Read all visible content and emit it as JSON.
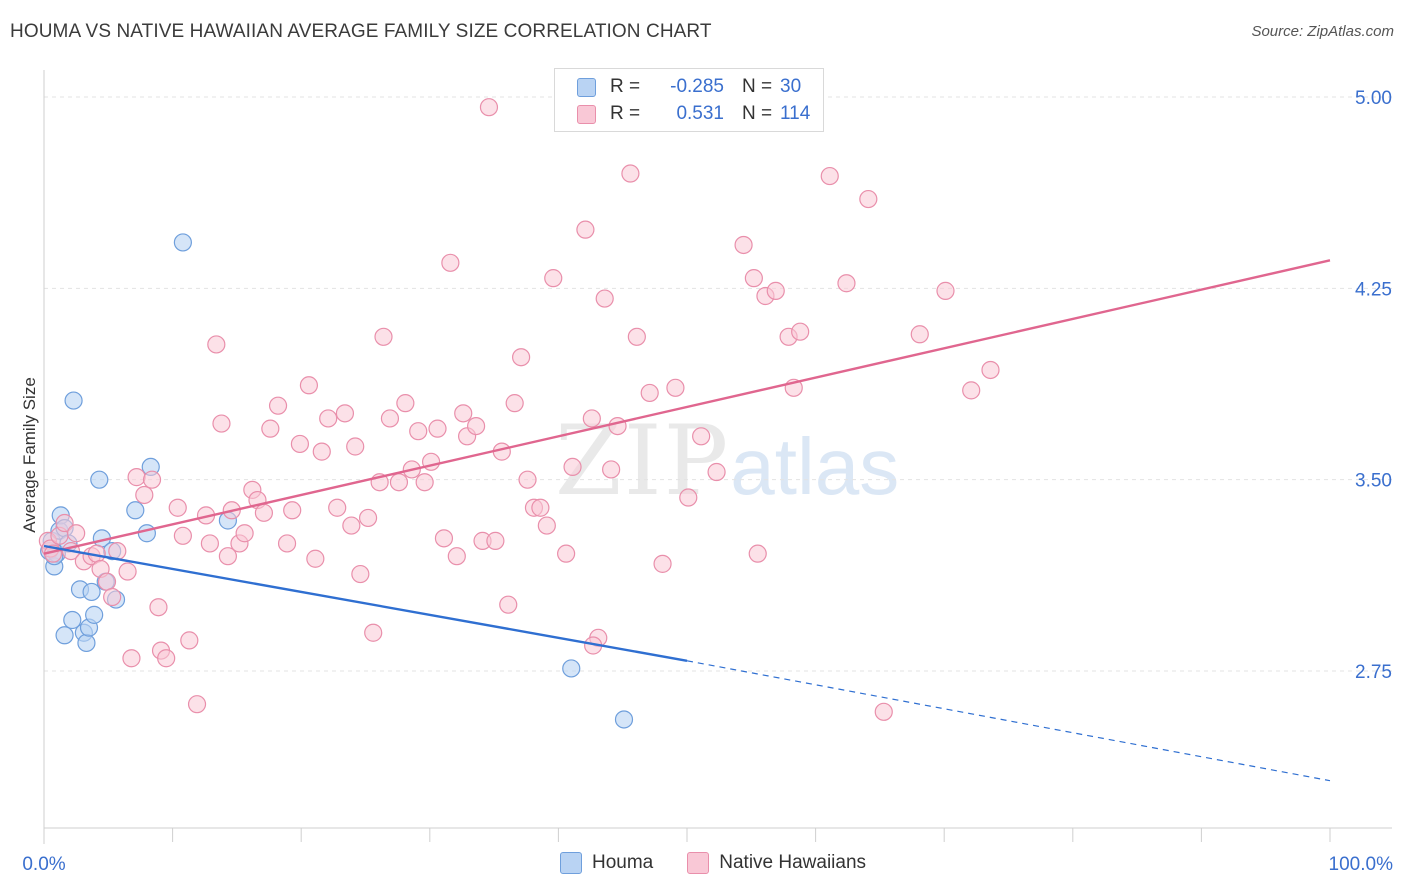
{
  "header": {
    "title": "HOUMA VS NATIVE HAWAIIAN AVERAGE FAMILY SIZE CORRELATION CHART",
    "source": "Source: ZipAtlas.com"
  },
  "watermark": {
    "zip": "ZIP",
    "atlas": "atlas"
  },
  "legend_top": {
    "rows": [
      {
        "r_label": "R =",
        "r_value": "-0.285",
        "n_label": "N =",
        "n_value": "30"
      },
      {
        "r_label": "R =",
        "r_value": "0.531",
        "n_label": "N =",
        "n_value": "114"
      }
    ]
  },
  "legend_bottom": {
    "houma": "Houma",
    "native": "Native Hawaiians"
  },
  "colors": {
    "houma_fill": "#b9d3f3",
    "houma_stroke": "#6f9fdc",
    "houma_line": "#2f6fd1",
    "native_fill": "#f9c8d6",
    "native_stroke": "#e98fab",
    "native_line": "#e0668f",
    "axis_text": "#3a6fce",
    "grid": "#e3e3e3"
  },
  "chart_data": {
    "type": "scatter",
    "title": "HOUMA VS NATIVE HAWAIIAN AVERAGE FAMILY SIZE CORRELATION CHART",
    "xlabel": "",
    "ylabel": "Average Family Size",
    "xlim": [
      0,
      100
    ],
    "ylim": [
      2.2,
      5.1
    ],
    "x_tick_labels": [
      "0.0%",
      "100.0%"
    ],
    "y_ticks": [
      2.75,
      3.5,
      4.25,
      5.0
    ],
    "y_tick_labels": [
      "2.75",
      "3.50",
      "4.25",
      "5.00"
    ],
    "series": [
      {
        "name": "Houma",
        "r": -0.285,
        "n": 30,
        "trend": {
          "x0": 0,
          "y0": 3.24,
          "x1": 50,
          "y1": 2.79,
          "dashed_to_x": 100,
          "dashed_to_y": 2.32
        },
        "points": [
          [
            0.4,
            3.22
          ],
          [
            0.6,
            3.26
          ],
          [
            0.8,
            3.16
          ],
          [
            1.0,
            3.21
          ],
          [
            1.2,
            3.3
          ],
          [
            1.3,
            3.36
          ],
          [
            1.6,
            3.31
          ],
          [
            1.9,
            3.25
          ],
          [
            2.2,
            2.95
          ],
          [
            1.6,
            2.89
          ],
          [
            2.3,
            3.81
          ],
          [
            2.8,
            3.07
          ],
          [
            3.1,
            2.9
          ],
          [
            3.3,
            2.86
          ],
          [
            3.5,
            2.92
          ],
          [
            3.7,
            3.06
          ],
          [
            3.9,
            2.97
          ],
          [
            4.3,
            3.5
          ],
          [
            4.5,
            3.27
          ],
          [
            4.8,
            3.1
          ],
          [
            5.3,
            3.22
          ],
          [
            5.6,
            3.03
          ],
          [
            7.1,
            3.38
          ],
          [
            8.0,
            3.29
          ],
          [
            8.3,
            3.55
          ],
          [
            10.8,
            4.43
          ],
          [
            14.3,
            3.34
          ],
          [
            41.0,
            2.76
          ],
          [
            45.1,
            2.56
          ],
          [
            0.8,
            3.2
          ]
        ]
      },
      {
        "name": "Native Hawaiians",
        "r": 0.531,
        "n": 114,
        "trend": {
          "x0": 0,
          "y0": 3.21,
          "x1": 100,
          "y1": 4.36
        },
        "points": [
          [
            0.3,
            3.26
          ],
          [
            0.5,
            3.23
          ],
          [
            0.7,
            3.21
          ],
          [
            1.2,
            3.28
          ],
          [
            1.6,
            3.33
          ],
          [
            2.1,
            3.22
          ],
          [
            2.5,
            3.29
          ],
          [
            3.1,
            3.18
          ],
          [
            3.7,
            3.2
          ],
          [
            4.1,
            3.21
          ],
          [
            4.4,
            3.15
          ],
          [
            4.9,
            3.1
          ],
          [
            5.3,
            3.04
          ],
          [
            5.7,
            3.22
          ],
          [
            6.5,
            3.14
          ],
          [
            6.8,
            2.8
          ],
          [
            7.2,
            3.51
          ],
          [
            7.8,
            3.44
          ],
          [
            8.4,
            3.5
          ],
          [
            8.9,
            3.0
          ],
          [
            9.1,
            2.83
          ],
          [
            9.5,
            2.8
          ],
          [
            10.4,
            3.39
          ],
          [
            10.8,
            3.28
          ],
          [
            11.3,
            2.87
          ],
          [
            11.9,
            2.62
          ],
          [
            12.6,
            3.36
          ],
          [
            12.9,
            3.25
          ],
          [
            13.4,
            4.03
          ],
          [
            13.8,
            3.72
          ],
          [
            14.3,
            3.2
          ],
          [
            14.6,
            3.38
          ],
          [
            15.2,
            3.25
          ],
          [
            15.6,
            3.29
          ],
          [
            16.2,
            3.46
          ],
          [
            16.6,
            3.42
          ],
          [
            17.1,
            3.37
          ],
          [
            17.6,
            3.7
          ],
          [
            18.2,
            3.79
          ],
          [
            18.9,
            3.25
          ],
          [
            19.3,
            3.38
          ],
          [
            19.9,
            3.64
          ],
          [
            20.6,
            3.87
          ],
          [
            21.1,
            3.19
          ],
          [
            21.6,
            3.61
          ],
          [
            22.1,
            3.74
          ],
          [
            22.8,
            3.39
          ],
          [
            23.4,
            3.76
          ],
          [
            23.9,
            3.32
          ],
          [
            24.2,
            3.63
          ],
          [
            24.6,
            3.13
          ],
          [
            25.2,
            3.35
          ],
          [
            25.6,
            2.9
          ],
          [
            26.1,
            3.49
          ],
          [
            26.4,
            4.06
          ],
          [
            26.9,
            3.74
          ],
          [
            27.6,
            3.49
          ],
          [
            28.1,
            3.8
          ],
          [
            28.6,
            3.54
          ],
          [
            29.1,
            3.69
          ],
          [
            29.6,
            3.49
          ],
          [
            30.1,
            3.57
          ],
          [
            30.6,
            3.7
          ],
          [
            31.1,
            3.27
          ],
          [
            31.6,
            4.35
          ],
          [
            32.1,
            3.2
          ],
          [
            32.6,
            3.76
          ],
          [
            32.9,
            3.67
          ],
          [
            33.6,
            3.71
          ],
          [
            34.1,
            3.26
          ],
          [
            34.6,
            4.96
          ],
          [
            35.1,
            3.26
          ],
          [
            35.6,
            3.61
          ],
          [
            36.1,
            3.01
          ],
          [
            36.6,
            3.8
          ],
          [
            37.1,
            3.98
          ],
          [
            37.6,
            3.5
          ],
          [
            38.1,
            3.39
          ],
          [
            38.6,
            3.39
          ],
          [
            39.1,
            3.32
          ],
          [
            39.6,
            4.29
          ],
          [
            40.6,
            3.21
          ],
          [
            41.1,
            3.55
          ],
          [
            42.1,
            4.48
          ],
          [
            42.6,
            3.74
          ],
          [
            43.1,
            2.88
          ],
          [
            42.7,
            2.85
          ],
          [
            43.6,
            4.21
          ],
          [
            44.1,
            3.54
          ],
          [
            44.6,
            3.71
          ],
          [
            45.6,
            4.7
          ],
          [
            46.1,
            4.06
          ],
          [
            47.1,
            3.84
          ],
          [
            48.1,
            3.17
          ],
          [
            49.1,
            3.86
          ],
          [
            50.1,
            3.43
          ],
          [
            51.1,
            3.67
          ],
          [
            52.3,
            3.53
          ],
          [
            54.4,
            4.42
          ],
          [
            55.2,
            4.29
          ],
          [
            56.1,
            4.22
          ],
          [
            56.9,
            4.24
          ],
          [
            57.9,
            4.06
          ],
          [
            58.3,
            3.86
          ],
          [
            58.8,
            4.08
          ],
          [
            61.1,
            4.69
          ],
          [
            62.4,
            4.27
          ],
          [
            64.1,
            4.6
          ],
          [
            65.3,
            2.59
          ],
          [
            68.1,
            4.07
          ],
          [
            70.1,
            4.24
          ],
          [
            72.1,
            3.85
          ],
          [
            73.6,
            3.93
          ],
          [
            55.5,
            3.21
          ]
        ]
      }
    ]
  }
}
